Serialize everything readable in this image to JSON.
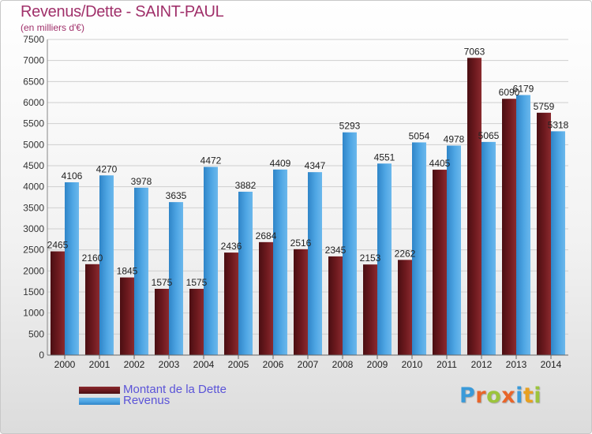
{
  "header": {
    "title": "Revenus/Dette - SAINT-PAUL",
    "subtitle": "(en milliers d'€)"
  },
  "colors": {
    "title": "#a0306a",
    "legend_text": "#5b54d8",
    "dette": "#6e1a1f",
    "revenus": "#4fa6e4"
  },
  "legend": {
    "dette_label": "Montant de la Dette",
    "revenus_label": "Revenus"
  },
  "logo": {
    "text": "Proxiti",
    "letters": [
      "P",
      "r",
      "o",
      "x",
      "i",
      "t",
      "i"
    ],
    "colors": [
      "#3a9ad9",
      "#e8652a",
      "#9cc43c",
      "#e8652a",
      "#3a9ad9",
      "#e8a020",
      "#9cc43c"
    ]
  },
  "chart_data": {
    "type": "bar",
    "title": "Revenus/Dette - SAINT-PAUL",
    "subtitle": "(en milliers d'€)",
    "categories": [
      "2000",
      "2001",
      "2002",
      "2003",
      "2004",
      "2005",
      "2006",
      "2007",
      "2008",
      "2009",
      "2010",
      "2011",
      "2012",
      "2013",
      "2014"
    ],
    "series": [
      {
        "name": "Montant de la Dette",
        "values": [
          2465,
          2160,
          1845,
          1575,
          1575,
          2436,
          2684,
          2516,
          2345,
          2153,
          2262,
          4405,
          7063,
          6090,
          5759
        ],
        "labels": [
          "2465",
          "2160",
          "1845",
          "1575",
          "1575",
          "2436",
          "2684",
          "2516",
          "2345",
          "2153",
          "2262",
          "4405",
          "7063",
          "6090",
          "5759"
        ]
      },
      {
        "name": "Revenus",
        "values": [
          4106,
          4270,
          3978,
          3635,
          4472,
          3882,
          4409,
          4347,
          5293,
          4551,
          5054,
          4978,
          5065,
          6179,
          5318
        ],
        "labels": [
          "4106",
          "4270",
          "3978",
          "3635",
          "4472",
          "3882",
          "4409",
          "4347",
          "5293",
          "4551",
          "5054",
          "4978",
          "5065",
          "6179",
          "5318"
        ]
      }
    ],
    "ylim": [
      0,
      7500
    ],
    "yticks": [
      0,
      500,
      1000,
      1500,
      2000,
      2500,
      3000,
      3500,
      4000,
      4500,
      5000,
      5500,
      6000,
      6500,
      7000,
      7500
    ],
    "grid": true,
    "legend_position": "bottom-left"
  }
}
